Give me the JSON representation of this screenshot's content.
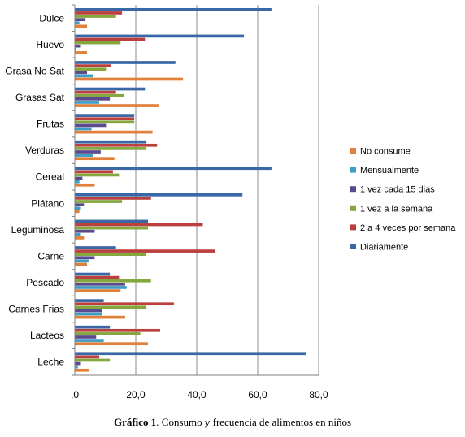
{
  "chart_data": {
    "type": "bar",
    "orientation": "horizontal",
    "categories": [
      "Dulce",
      "Huevo",
      "Grasa No Sat",
      "Grasas Sat",
      "Frutas",
      "Verduras",
      "Cereal",
      "Plátano",
      "Leguminosa",
      "Carne",
      "Pescado",
      "Carnes Frias",
      "Lacteos",
      "Leche"
    ],
    "series": [
      {
        "name": "No consume",
        "color": "#e0803a",
        "values": [
          4,
          4,
          35.5,
          27.5,
          25.5,
          13,
          6.5,
          1.5,
          3,
          4,
          15,
          16.5,
          24,
          4.5
        ]
      },
      {
        "name": "Mensualmente",
        "color": "#3f9cc4",
        "values": [
          1.5,
          0.5,
          6,
          8,
          5.5,
          6,
          1.5,
          2,
          2,
          4.5,
          17,
          9,
          9.5,
          1
        ]
      },
      {
        "name": "1 vez cada 15 días",
        "color": "#5b4a8e",
        "values": [
          3.5,
          2,
          4,
          11.5,
          10.5,
          8.5,
          2.5,
          3,
          6.5,
          6.5,
          16.5,
          9,
          7,
          2
        ]
      },
      {
        "name": "1 vez a la semana",
        "color": "#85a83e",
        "values": [
          13.5,
          15,
          10.5,
          16,
          19.5,
          23.5,
          14.5,
          15.5,
          24,
          23.5,
          25,
          23.5,
          21.5,
          11.5
        ]
      },
      {
        "name": "2 a 4 veces por semana",
        "color": "#b9403d",
        "values": [
          15.5,
          23,
          12,
          13.5,
          19.5,
          27,
          12.5,
          25,
          42,
          46,
          14.5,
          32.5,
          28,
          8
        ]
      },
      {
        "name": "Diariamente",
        "color": "#3a67a5",
        "values": [
          64.5,
          55.5,
          33,
          23,
          19.5,
          23.5,
          64.5,
          55,
          24,
          13.5,
          11.5,
          9.5,
          11.5,
          76
        ]
      }
    ],
    "xlim": [
      0,
      80
    ],
    "xticks": [
      0,
      20,
      40,
      60,
      80
    ],
    "xtick_labels": [
      ",0",
      "20,0",
      "40,0",
      "60,0",
      "80,0"
    ],
    "grid": "vertical",
    "legend_position": "right"
  },
  "legend_items": [
    "No consume",
    "Mensualmente",
    "1 vez cada 15 dias",
    "1 vez a la semana",
    "2 a 4 veces por semana",
    "Diariamente"
  ],
  "caption": {
    "bold": "Gráfico 1",
    "text": ". Consumo y frecuencia de alimentos en niños"
  }
}
